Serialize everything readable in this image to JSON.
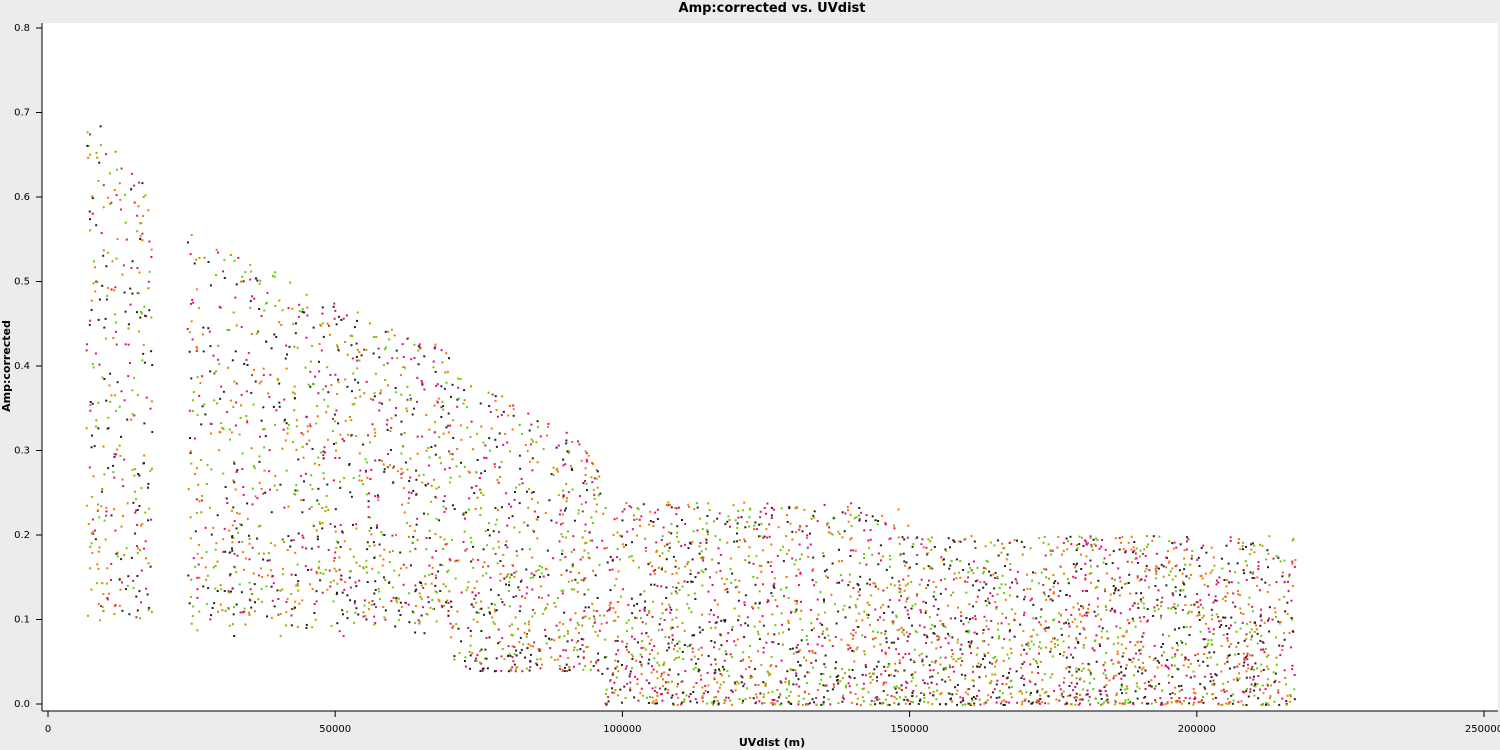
{
  "chart_data": {
    "type": "scatter",
    "title": "Amp:corrected vs. UVdist",
    "xlabel": "UVdist (m)",
    "ylabel": "Amp:corrected",
    "xlim": [
      0,
      250000
    ],
    "ylim": [
      0,
      0.8
    ],
    "x_ticks": [
      0,
      50000,
      100000,
      150000,
      200000,
      250000
    ],
    "x_tick_labels": [
      "0",
      "50000",
      "100000",
      "150000",
      "200000",
      "250000"
    ],
    "y_ticks": [
      0.0,
      0.1,
      0.2,
      0.3,
      0.4,
      0.5,
      0.6,
      0.7,
      0.8
    ],
    "y_tick_labels": [
      "0.0",
      "0.1",
      "0.2",
      "0.3",
      "0.4",
      "0.5",
      "0.6",
      "0.7",
      "0.8"
    ],
    "grid": false,
    "legend": false,
    "colors": {
      "background": "#ececec",
      "plot_area": "#ffffff",
      "series": [
        "#222222",
        "#e0116a",
        "#ee7a00",
        "#66cc00"
      ]
    },
    "clusters": [
      {
        "x": [
          6500,
          18000
        ],
        "ymin": 0.1,
        "ymax": 0.7
      },
      {
        "x": [
          24000,
          70000
        ],
        "ymin": 0.1,
        "ymax": 0.5
      },
      {
        "x": [
          70000,
          96000
        ],
        "ymin": 0.06,
        "ymax": 0.33
      },
      {
        "x": [
          96000,
          150000
        ],
        "ymin": 0.01,
        "ymax": 0.22
      },
      {
        "x": [
          150000,
          217000
        ],
        "ymin": 0.01,
        "ymax": 0.19
      }
    ]
  }
}
